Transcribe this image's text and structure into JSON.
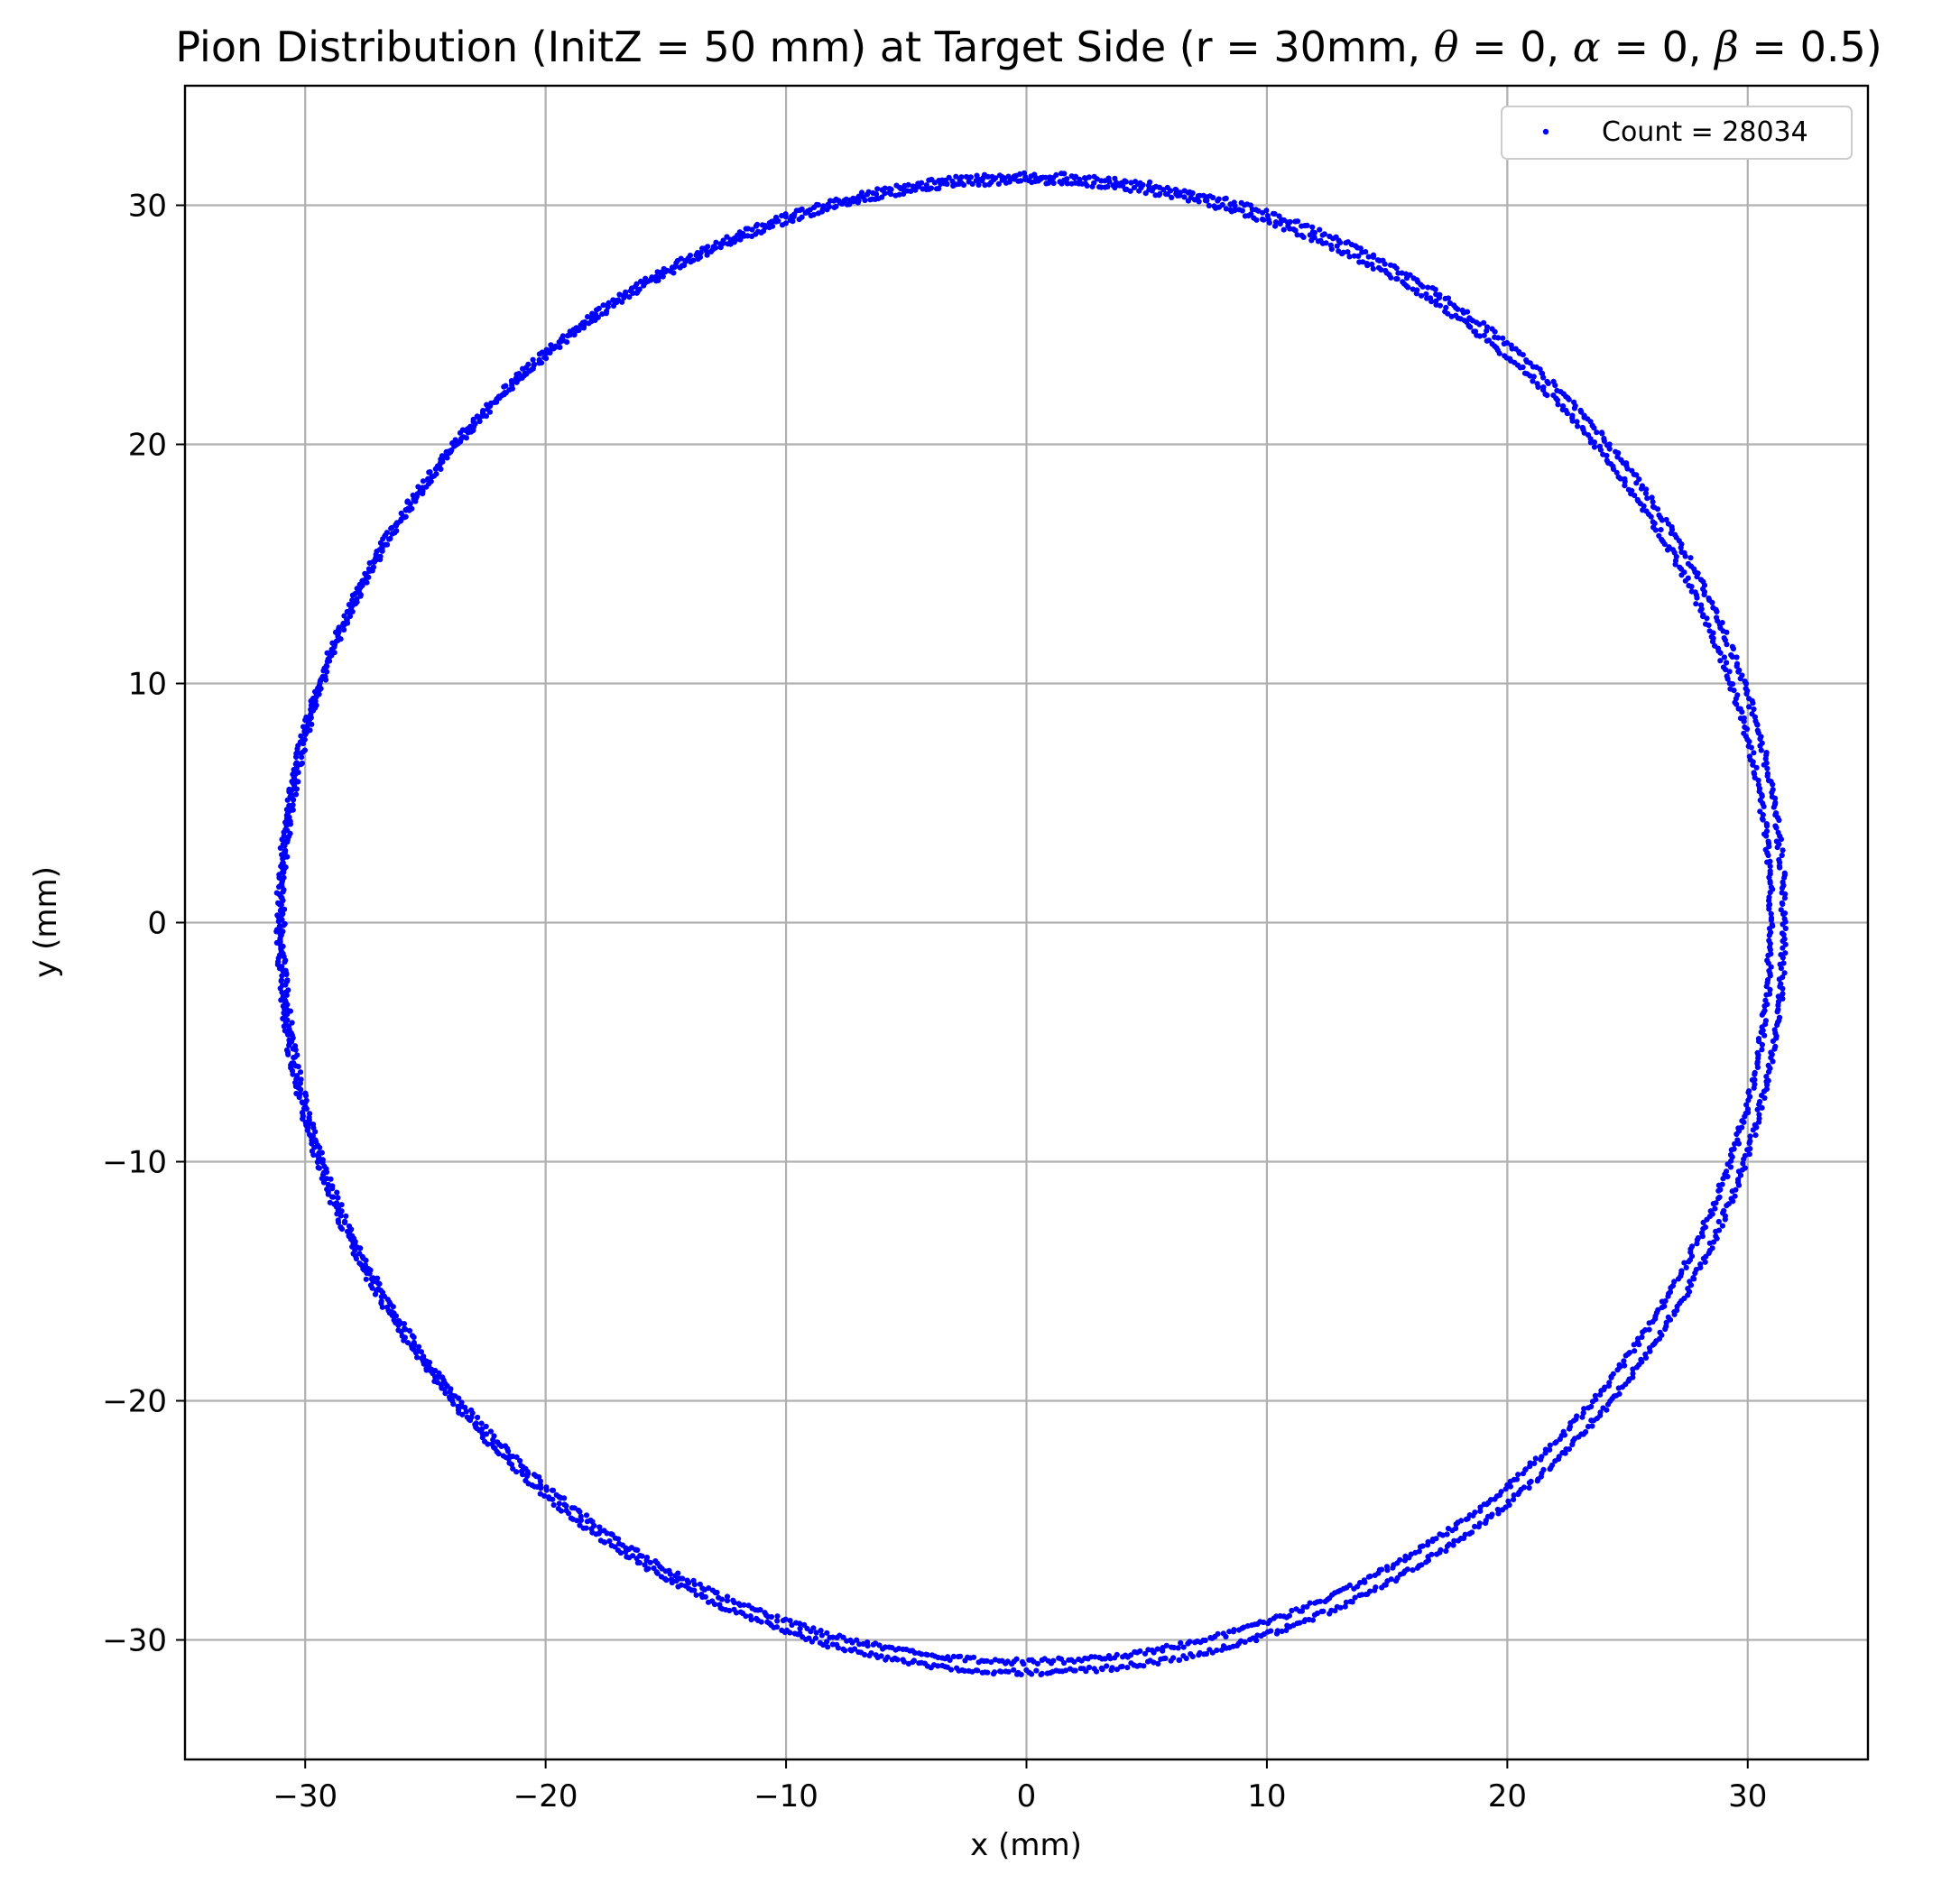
{
  "chart_data": {
    "type": "scatter",
    "title": {
      "prefix": "Pion Distribution (InitZ = 50 mm) at Target Side (r = 30mm, ",
      "theta_symbol": "θ",
      "alpha_symbol": "α",
      "beta_symbol": "β",
      "eq_theta": " = 0, ",
      "eq_alpha": " = 0, ",
      "eq_beta": " = 0.5)"
    },
    "xlabel": "x (mm)",
    "ylabel": "y (mm)",
    "xlim": [
      -35,
      35
    ],
    "ylim": [
      -35,
      35
    ],
    "xticks": [
      -30,
      -20,
      -10,
      0,
      10,
      20,
      30
    ],
    "yticks": [
      -30,
      -20,
      -10,
      0,
      10,
      20,
      30
    ],
    "xtick_labels": [
      "−30",
      "−20",
      "−10",
      "0",
      "10",
      "20",
      "30"
    ],
    "ytick_labels": [
      "−30",
      "−20",
      "−10",
      "0",
      "10",
      "20",
      "30"
    ],
    "grid": true,
    "legend": {
      "position": "top-right",
      "label": "Count = 28034"
    },
    "series": [
      {
        "name": "Count = 28034",
        "color": "#0000ff",
        "marker": "dot",
        "shape": "two concentric rings, slightly offset",
        "rings": [
          {
            "cx": 0.2,
            "cy": -0.05,
            "radius": 31.3
          },
          {
            "cx": 0.0,
            "cy": 0.05,
            "radius": 30.95
          }
        ]
      }
    ]
  }
}
